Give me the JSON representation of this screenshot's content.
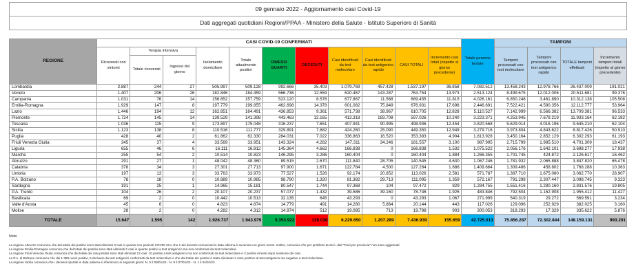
{
  "title": {
    "line1": "09 gennaio 2022 - Aggiornamento casi Covid-19",
    "line2": "Dati aggregati quotidiani Regioni/PPAA - Ministero della Salute - Istituto Superiore di Sanità"
  },
  "table": {
    "regione_header": "REGIONE",
    "band_casi": "CASI COVID-19 CONFERMATI",
    "band_tamponi": "TAMPONI",
    "terapia_intensiva": "Terapia intensiva",
    "columns": {
      "ricoverati_con_sintomi": "Ricoverati con sintomi",
      "totale_ricoverati": "Totale ricoverati",
      "ingressi_del_giorno": "Ingressi del giorno",
      "isolamento_domiciliare": "Isolamento domiciliare",
      "totale_attualmente_positivi": "Totale attualmente positivi",
      "dimessi_guariti": "DIMESSI GUARITI",
      "deceduti": "DECEDUTI",
      "casi_test_molecolare": "Casi identificati da test molecolare",
      "casi_test_antigenico": "Casi identificati da test antigenico rapido",
      "casi_totali": "CASI TOTALI",
      "incremento_casi": "Incremento casi totali (rispetto al giorno precedente)",
      "persone_testate": "Totale persone testate",
      "tamponi_molecolare": "Tamponi processati con test molecolare",
      "tamponi_antigenico": "Tamponi processati con test antigenico rapido",
      "totale_tamponi": "TOTALE tamponi effettuati",
      "incremento_tamponi": "Incremento tamponi totali (rispetto al giorno precedente)"
    },
    "rows": [
      {
        "regione": "Lombardia",
        "values": [
          "2.887",
          "244",
          "27",
          "505.997",
          "509.128",
          "992.666",
          "35.403",
          "1.079.769",
          "457.428",
          "1.537.197",
          "36.858",
          "7.082.512",
          "13.458.243",
          "12.978.766",
          "26.437.009",
          "191.021"
        ]
      },
      {
        "regione": "Veneto",
        "values": [
          "1.407",
          "206",
          "26",
          "182.846",
          "184.459",
          "566.736",
          "12.559",
          "620.467",
          "143.287",
          "763.754",
          "13.973",
          "2.513.124",
          "8.499.675",
          "12.012.006",
          "20.511.681",
          "99.376"
        ]
      },
      {
        "regione": "Campania",
        "values": [
          "1.031",
          "76",
          "14",
          "156.652",
          "157.759",
          "523.120",
          "8.576",
          "677.867",
          "11.588",
          "689.455",
          "11.815",
          "4.026.161",
          "6.850.248",
          "3.461.890",
          "10.312.138",
          "105.508"
        ]
      },
      {
        "regione": "Emilia-Romagna",
        "values": [
          "1.929",
          "147",
          "8",
          "197.779",
          "199.855",
          "462.698",
          "14.378",
          "601.082",
          "75.849",
          "676.931",
          "17.698",
          "2.446.691",
          "7.522.421",
          "4.590.356",
          "12.112.777",
          "53.964"
        ]
      },
      {
        "regione": "Lazio",
        "values": [
          "1.446",
          "194",
          "12",
          "162.851",
          "164.491",
          "436.853",
          "9.361",
          "571.738",
          "38.967",
          "610.705",
          "12.828",
          "5.110.527",
          "7.142.999",
          "6.566.382",
          "13.709.381",
          "96.533"
        ]
      },
      {
        "regione": "Piemonte",
        "values": [
          "1.724",
          "145",
          "14",
          "139.529",
          "141.398",
          "443.463",
          "12.165",
          "413.318",
          "183.708",
          "597.026",
          "10.240",
          "3.223.371",
          "4.253.945",
          "7.679.219",
          "11.933.164",
          "62.182"
        ]
      },
      {
        "regione": "Toscana",
        "values": [
          "1.036",
          "115",
          "9",
          "173.897",
          "175.048",
          "316.237",
          "7.651",
          "407.941",
          "90.995",
          "498.936",
          "12.454",
          "3.820.568",
          "5.629.014",
          "4.016.196",
          "9.645.210",
          "62.104"
        ]
      },
      {
        "regione": "Sicilia",
        "values": [
          "1.123",
          "138",
          "8",
          "110.516",
          "111.777",
          "329.891",
          "7.682",
          "424.260",
          "25.090",
          "449.350",
          "12.949",
          "3.279.716",
          "3.973.804",
          "4.843.622",
          "8.817.426",
          "50.910"
        ]
      },
      {
        "regione": "Puglia",
        "values": [
          "428",
          "40",
          "2",
          "61.862",
          "62.330",
          "284.031",
          "7.022",
          "336.863",
          "16.520",
          "353.383",
          "4.904",
          "1.813.928",
          "3.450.164",
          "2.852.129",
          "6.302.293",
          "61.193"
        ]
      },
      {
        "regione": "Friuli Venezia Giulia",
        "values": [
          "345",
          "37",
          "4",
          "33.569",
          "33.951",
          "143.324",
          "4.282",
          "147.311",
          "34.246",
          "181.557",
          "3.100",
          "987.995",
          "2.715.799",
          "1.985.510",
          "4.701.309",
          "18.437"
        ]
      },
      {
        "regione": "Liguria",
        "values": [
          "655",
          "46",
          "6",
          "16.111",
          "16.812",
          "145.364",
          "4.662",
          "166.838",
          "0",
          "166.838",
          "1.532",
          "1.075.522",
          "2.056.176",
          "1.642.101",
          "3.698.277",
          "17.938"
        ]
      },
      {
        "regione": "Marche",
        "values": [
          "255",
          "54",
          "2",
          "10.514",
          "10.823",
          "146.295",
          "3.286",
          "160.404",
          "0",
          "160.404",
          "1.884",
          "1.266.355",
          "1.701.745",
          "424.872",
          "2.126.617",
          "16.462"
        ]
      },
      {
        "regione": "Abruzzo",
        "values": [
          "291",
          "27",
          "1",
          "48.042",
          "48.360",
          "89.515",
          "2.670",
          "111.840",
          "28.705",
          "140.545",
          "4.630",
          "1.067.246",
          "1.781.932",
          "2.065.888",
          "3.847.820",
          "65.478"
        ]
      },
      {
        "regione": "Calabria",
        "values": [
          "378",
          "34",
          "3",
          "27.301",
          "27.713",
          "97.900",
          "1.671",
          "122.784",
          "4.500",
          "127.284",
          "1.686",
          "1.409.664",
          "1.309.486",
          "458.802",
          "1.768.288",
          "10.363"
        ]
      },
      {
        "regione": "Umbria",
        "values": [
          "197",
          "13",
          "3",
          "33.763",
          "33.973",
          "77.527",
          "1.526",
          "92.174",
          "20.852",
          "113.026",
          "2.581",
          "571.787",
          "1.387.710",
          "1.675.060",
          "3.062.770",
          "28.907"
        ]
      },
      {
        "regione": "P.A. Bolzano",
        "values": [
          "78",
          "18",
          "0",
          "10.889",
          "10.985",
          "98.790",
          "1.320",
          "81.382",
          "29.713",
          "111.095",
          "1.359",
          "572.167",
          "791.298",
          "2.307.447",
          "3.098.745",
          "9.323"
        ]
      },
      {
        "regione": "Sardegna",
        "values": [
          "191",
          "25",
          "1",
          "14.965",
          "15.181",
          "80.547",
          "1.744",
          "97.368",
          "104",
          "97.472",
          "829",
          "1.284.755",
          "1.551.416",
          "1.280.160",
          "2.831.576",
          "19.805"
        ]
      },
      {
        "regione": "P.A. Trento",
        "values": [
          "104",
          "26",
          "2",
          "20.107",
          "20.237",
          "57.077",
          "1.432",
          "39.586",
          "39.160",
          "78.746",
          "1.926",
          "483.846",
          "792.504",
          "1.162.908",
          "1.955.412",
          "11.427"
        ]
      },
      {
        "regione": "Basilicata",
        "values": [
          "69",
          "2",
          "0",
          "10.442",
          "10.513",
          "32.135",
          "645",
          "43.293",
          "0",
          "43.293",
          "1.067",
          "271.999",
          "540.319",
          "29.272",
          "569.591",
          "3.234"
        ]
      },
      {
        "regione": "Valle d'Aosta",
        "values": [
          "45",
          "6",
          "0",
          "4.823",
          "4.874",
          "14.779",
          "491",
          "14.280",
          "5.864",
          "20.144",
          "443",
          "117.026",
          "129.096",
          "252.929",
          "382.025",
          "3.160"
        ]
      },
      {
        "regione": "Molise",
        "values": [
          "28",
          "2",
          "0",
          "4.282",
          "4.312",
          "14.974",
          "512",
          "19.085",
          "713",
          "19.798",
          "903",
          "300.053",
          "318.293",
          "17.329",
          "335.622",
          "5.876"
        ]
      }
    ],
    "totale_row": {
      "regione": "TOTALE",
      "values": [
        "15.647",
        "1.595",
        "142",
        "1.926.737",
        "1.943.979",
        "5.353.922",
        "139.038",
        "6.229.650",
        "1.207.289",
        "7.436.939",
        "155.659",
        "42.725.013",
        "75.856.287",
        "72.302.844",
        "148.159.131",
        "993.201"
      ]
    }
  },
  "notes": {
    "label": "Note:",
    "items": [
      "La regione Abruzzo comunica che dal totale dei positivi sono stati eliminati 3 casi in quanto non pazienti COVID-19 e che 1 dei decessi comunicati in data odierna è avvenuto nei giorni scorsi. Inoltre, comunica che per problemi tecnici i dati \"Casi per provincia\" non sono aggiornati.",
      "La regione Emilia Romagna comunica che dal totale dei positivi sono stati eliminati 2 casi in quanto positivi a test antigenico ma non confermati da test molecolare.",
      "La regione Friuli Venezia Giulia comunica che dal totale dei casi positivi sono stati eliminati 12 casi: 10 positivi a test antigenico ma non confermati da test molecolare e 2 positivi rimossi dopo revisione dei casi.",
      "La P.A. di Bolzano comunica che dei 1.359 nuovi positivi, 9 derivano da test antigenici confermati da test molecolare e che dal totale dei positivi è stato eliminato 1 caso positivo al test antigenico ma negativo a test molecolare.",
      "La regione Sicilia comunica che i decessi riportati in data odierna si riferiscono ai seguenti giorni: N. 5 il 08/01/22 - N. 9 il 07/01/22 - N. 1 il 04/01/22."
    ]
  },
  "colors": {
    "header_gray": "#a6a6a6",
    "totale_gray": "#bfbfbf",
    "green": "#00b050",
    "red": "#ff0000",
    "yellow": "#ffc000",
    "cyan": "#00b0f0",
    "light_blue": "#bdd7ee",
    "gray_blue": "#d6dce4"
  }
}
